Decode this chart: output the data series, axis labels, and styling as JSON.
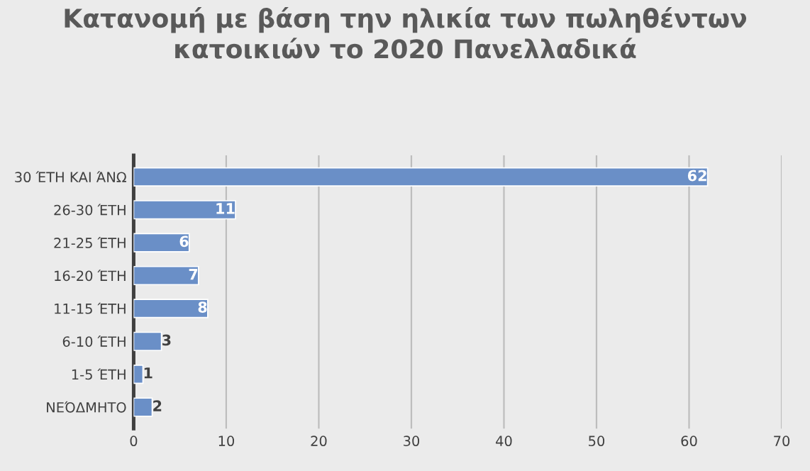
{
  "chart_data": {
    "type": "bar",
    "orientation": "horizontal",
    "title": "Κατανομή με βάση την ηλικία των πωληθέντων κατοικιών το 2020 Πανελλαδικά",
    "categories": [
      "30 ΈΤΗ ΚΑΙ ΆΝΩ",
      "26-30 ΈΤΗ",
      "21-25 ΈΤΗ",
      "16-20 ΈΤΗ",
      "11-15 ΈΤΗ",
      "6-10 ΈΤΗ",
      "1-5 ΈΤΗ",
      "ΝΕΌΔΜΗΤΟ"
    ],
    "values": [
      62,
      11,
      6,
      7,
      8,
      3,
      1,
      2
    ],
    "color": "#6a8fc7",
    "xlim": [
      0,
      70
    ],
    "xticks": [
      0,
      10,
      20,
      30,
      40,
      50,
      60,
      70
    ],
    "grid": "x",
    "data_labels": true
  }
}
